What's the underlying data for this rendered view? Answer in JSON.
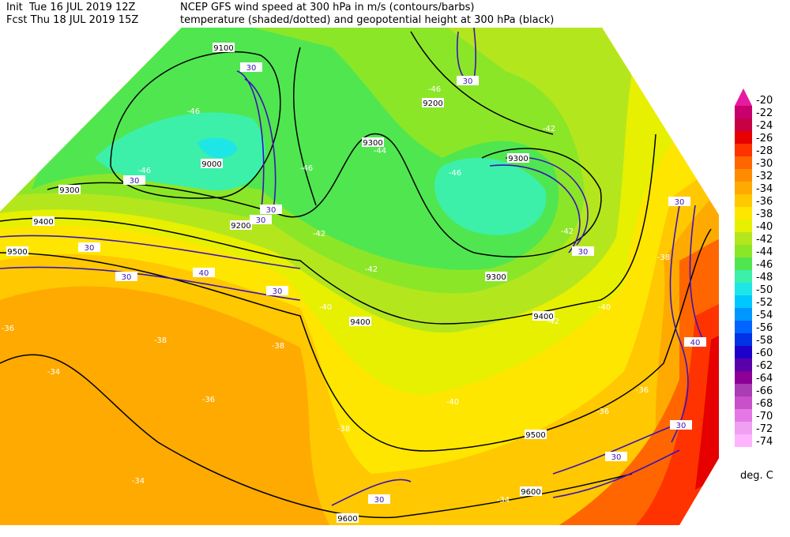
{
  "header": {
    "init": "Init  Tue 16 JUL 2019 12Z",
    "fcst": "Fcst Thu 18 JUL 2019 15Z",
    "title1": "NCEP GFS wind speed at 300 hPa in m/s (contours/barbs)",
    "title2": "temperature (shaded/dotted) and geopotential height at 300 hPa (black)"
  },
  "colorbar": {
    "labels": [
      -20,
      -22,
      -24,
      -26,
      -28,
      -30,
      -32,
      -34,
      -36,
      -38,
      -40,
      -42,
      -44,
      -46,
      -48,
      -50,
      -52,
      -54,
      -56,
      -58,
      -60,
      -62,
      -64,
      -66,
      -68,
      -70,
      -72,
      -74
    ],
    "colors": [
      "#e619a0",
      "#c8006e",
      "#c80046",
      "#e60000",
      "#ff3300",
      "#ff6600",
      "#ff8c00",
      "#ffaa00",
      "#ffc800",
      "#ffe600",
      "#e6f000",
      "#b4e61e",
      "#8ce628",
      "#50e650",
      "#3cf0aa",
      "#1ee6e6",
      "#00c8ff",
      "#0096ff",
      "#0064ff",
      "#0032e6",
      "#1e00c8",
      "#5a00aa",
      "#8c0096",
      "#aa3cb4",
      "#c850c8",
      "#e678e6",
      "#f0a0f0",
      "#ffb4ff"
    ],
    "unit": "deg. C"
  },
  "map_labels": {
    "height": [
      "9100",
      "9000",
      "9200",
      "9300",
      "9300",
      "9200",
      "9300",
      "9400",
      "9500",
      "9300",
      "9400",
      "9400",
      "9500",
      "9600",
      "9600"
    ],
    "wind": [
      "30",
      "30",
      "30",
      "30",
      "30",
      "30",
      "30",
      "30",
      "30",
      "40",
      "40",
      "30",
      "30",
      "30",
      "30"
    ],
    "temperature": [
      "-46",
      "-46",
      "-46",
      "-46",
      "-46",
      "-44",
      "-42",
      "-42",
      "-42",
      "-42",
      "-42",
      "-40",
      "-40",
      "-38",
      "-38",
      "-38",
      "-36",
      "-36",
      "-36",
      "-36",
      "-34",
      "-34",
      "-34",
      "-38",
      "-40"
    ]
  }
}
